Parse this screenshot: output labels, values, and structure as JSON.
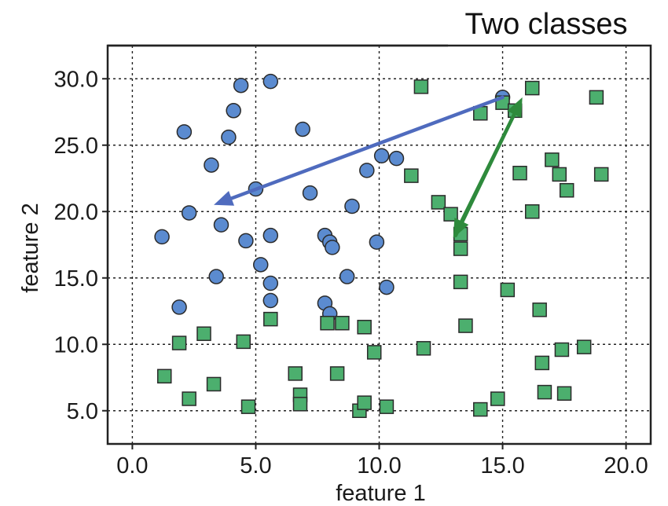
{
  "chart_data": {
    "type": "scatter",
    "title": "Two classes",
    "xlabel": "feature 1",
    "ylabel": "feature 2",
    "xlim": [
      -1,
      21
    ],
    "ylim": [
      2.5,
      32.5
    ],
    "xticks": [
      0,
      5,
      10,
      15,
      20
    ],
    "yticks": [
      5,
      10,
      15,
      20,
      25,
      30
    ],
    "xtick_labels": [
      "0.0",
      "5.0",
      "10.0",
      "15.0",
      "20.0"
    ],
    "ytick_labels": [
      "5.0",
      "10.0",
      "15.0",
      "20.0",
      "25.0",
      "30.0"
    ],
    "grid": true,
    "series": [
      {
        "marker": "circle",
        "color": "#5B8BD0",
        "points": [
          [
            4.4,
            29.5
          ],
          [
            5.6,
            29.8
          ],
          [
            4.1,
            27.6
          ],
          [
            2.1,
            26.0
          ],
          [
            3.9,
            25.6
          ],
          [
            6.9,
            26.2
          ],
          [
            3.2,
            23.5
          ],
          [
            5.0,
            21.7
          ],
          [
            7.2,
            21.4
          ],
          [
            2.3,
            19.9
          ],
          [
            1.2,
            18.1
          ],
          [
            3.6,
            19.0
          ],
          [
            4.6,
            17.8
          ],
          [
            5.6,
            18.2
          ],
          [
            8.9,
            20.4
          ],
          [
            9.5,
            23.1
          ],
          [
            10.1,
            24.2
          ],
          [
            10.7,
            24.0
          ],
          [
            7.8,
            18.2
          ],
          [
            8.0,
            17.7
          ],
          [
            8.1,
            17.3
          ],
          [
            9.9,
            17.7
          ],
          [
            5.2,
            16.0
          ],
          [
            3.4,
            15.1
          ],
          [
            5.6,
            14.6
          ],
          [
            8.7,
            15.1
          ],
          [
            10.3,
            14.3
          ],
          [
            5.6,
            13.3
          ],
          [
            7.8,
            13.1
          ],
          [
            8.0,
            12.3
          ],
          [
            1.9,
            12.8
          ],
          [
            15.0,
            28.6
          ]
        ]
      },
      {
        "marker": "square",
        "color": "#4CAF6E",
        "points": [
          [
            11.7,
            29.4
          ],
          [
            16.2,
            29.3
          ],
          [
            18.8,
            28.6
          ],
          [
            14.1,
            27.4
          ],
          [
            15.0,
            28.2
          ],
          [
            15.5,
            27.6
          ],
          [
            11.3,
            22.7
          ],
          [
            15.7,
            22.9
          ],
          [
            17.0,
            23.9
          ],
          [
            17.3,
            22.8
          ],
          [
            17.6,
            21.6
          ],
          [
            19.0,
            22.8
          ],
          [
            12.4,
            20.7
          ],
          [
            12.9,
            19.8
          ],
          [
            16.2,
            20.0
          ],
          [
            13.3,
            18.3
          ],
          [
            13.3,
            17.2
          ],
          [
            13.3,
            14.7
          ],
          [
            15.2,
            14.1
          ],
          [
            13.5,
            11.4
          ],
          [
            16.5,
            12.6
          ],
          [
            5.6,
            11.9
          ],
          [
            7.9,
            11.6
          ],
          [
            8.5,
            11.6
          ],
          [
            9.4,
            11.3
          ],
          [
            1.9,
            10.1
          ],
          [
            2.9,
            10.8
          ],
          [
            4.5,
            10.2
          ],
          [
            11.8,
            9.7
          ],
          [
            9.8,
            9.4
          ],
          [
            17.4,
            9.6
          ],
          [
            18.3,
            9.8
          ],
          [
            16.6,
            8.6
          ],
          [
            1.3,
            7.6
          ],
          [
            3.3,
            7.0
          ],
          [
            6.6,
            7.8
          ],
          [
            8.3,
            7.8
          ],
          [
            6.8,
            6.2
          ],
          [
            2.3,
            5.9
          ],
          [
            6.8,
            5.5
          ],
          [
            4.7,
            5.3
          ],
          [
            9.2,
            5.0
          ],
          [
            9.4,
            5.6
          ],
          [
            10.3,
            5.3
          ],
          [
            14.1,
            5.1
          ],
          [
            14.8,
            5.9
          ],
          [
            16.7,
            6.4
          ],
          [
            17.5,
            6.3
          ]
        ]
      }
    ],
    "arrows": [
      {
        "color": "#4F6BBE",
        "from": [
          15.0,
          28.6
        ],
        "to": [
          3.3,
          20.5
        ]
      },
      {
        "color": "#2E8A3C",
        "from": [
          15.6,
          27.8
        ],
        "to": [
          13.0,
          18.0
        ]
      },
      {
        "color": "#2E8A3C",
        "from": [
          13.1,
          18.2
        ],
        "to": [
          15.8,
          28.6
        ]
      }
    ]
  }
}
